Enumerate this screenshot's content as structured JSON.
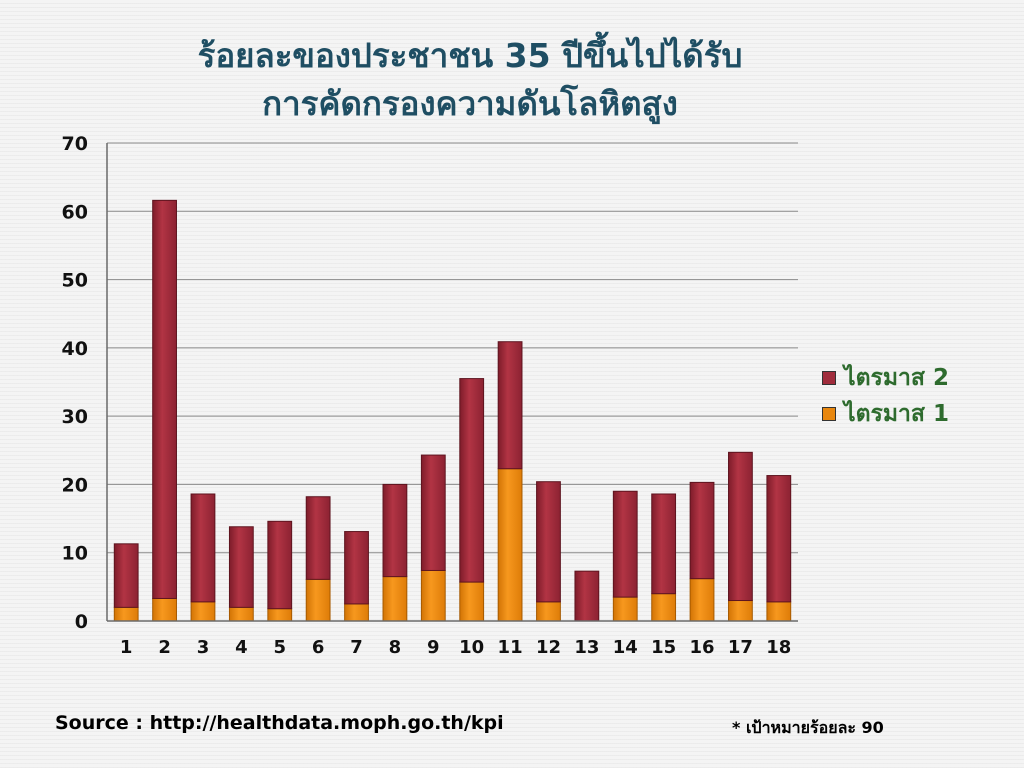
{
  "title_lines": [
    "ร้อยละของประชาชน 35 ปีขึ้นไปได้รับ",
    "การคัดกรองความดันโลหิตสูง"
  ],
  "source": "Source : http://healthdata.moph.go.th/kpi",
  "target_note": "* เป้าหมายร้อยละ 90",
  "chart_data": {
    "type": "bar",
    "stacked": true,
    "categories": [
      "1",
      "2",
      "3",
      "4",
      "5",
      "6",
      "7",
      "8",
      "9",
      "10",
      "11",
      "12",
      "13",
      "14",
      "15",
      "16",
      "17",
      "18"
    ],
    "series": [
      {
        "name": "ไตรมาส 1",
        "color": "#e8870f",
        "values": [
          2.0,
          3.3,
          2.8,
          2.0,
          1.8,
          6.1,
          2.5,
          6.5,
          7.4,
          5.7,
          22.3,
          2.8,
          0,
          3.5,
          4.0,
          6.2,
          3.0,
          2.8
        ]
      },
      {
        "name": "ไตรมาส 2",
        "color": "#a02c3c",
        "values": [
          9.3,
          58.3,
          15.8,
          11.8,
          12.8,
          12.1,
          10.6,
          13.5,
          16.9,
          29.8,
          18.6,
          17.6,
          7.3,
          15.5,
          14.6,
          14.1,
          21.7,
          18.5
        ]
      }
    ],
    "ylim": [
      0,
      70
    ],
    "yticks": [
      0,
      10,
      20,
      30,
      40,
      50,
      60,
      70
    ],
    "grid": true,
    "legend_position": "right"
  }
}
